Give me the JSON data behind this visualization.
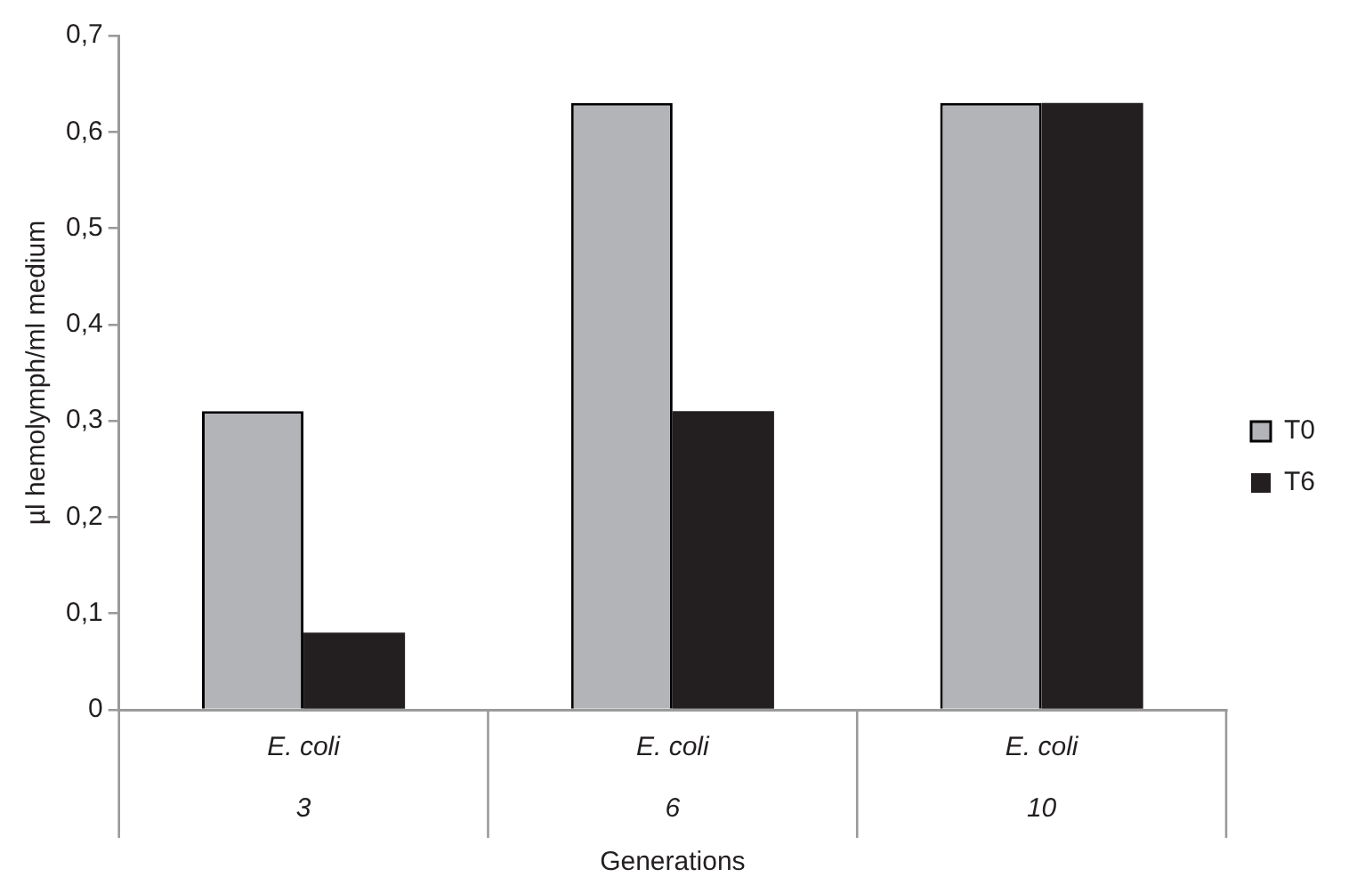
{
  "chart_data": {
    "type": "bar",
    "xlabel": "Generations",
    "ylabel": "µl hemolymph/ml medium",
    "categories": [
      "E. coli\n3",
      "E. coli\n6",
      "E. coli\n10"
    ],
    "series": [
      {
        "name": "T0",
        "color": "#b3b4b8",
        "values": [
          0.31,
          0.63,
          0.63
        ]
      },
      {
        "name": "T6",
        "color": "#231f20",
        "values": [
          0.08,
          0.31,
          0.63
        ]
      }
    ],
    "ylim": [
      0,
      0.7
    ],
    "yticks": [
      {
        "value": 0,
        "label": "0"
      },
      {
        "value": 0.1,
        "label": "0,1"
      },
      {
        "value": 0.2,
        "label": "0,2"
      },
      {
        "value": 0.3,
        "label": "0,3"
      },
      {
        "value": 0.4,
        "label": "0,4"
      },
      {
        "value": 0.5,
        "label": "0,5"
      },
      {
        "value": 0.6,
        "label": "0,6"
      },
      {
        "value": 0.7,
        "label": "0,7"
      }
    ],
    "grid": false,
    "legend": "right"
  }
}
